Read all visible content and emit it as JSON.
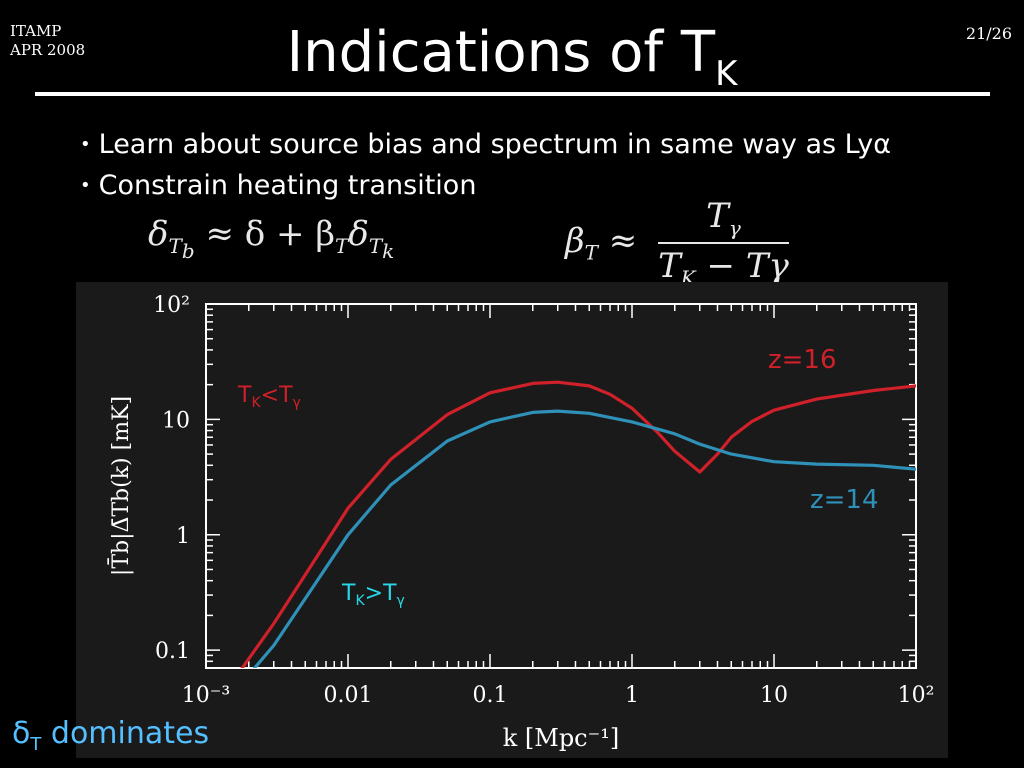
{
  "header": {
    "corner_line1": "ITAMP",
    "corner_line2": "APR 2008",
    "page": "21/26",
    "title_main": "Indications of T",
    "title_sub": "K"
  },
  "bullets": [
    "Learn about source bias and spectrum in same way as Lyα",
    "Constrain heating transition"
  ],
  "equations": {
    "eq1": "δ",
    "eq1_sub": "T",
    "eq1_subsub": "b",
    "eq1_rhs": " ≈ δ + β",
    "eq1_rhs_sub": "T",
    "eq1_rhs2": "δ",
    "eq1_rhs2_sub": "T",
    "eq1_rhs2_subsub": "k",
    "eq2_lhs": "β",
    "eq2_lhs_sub": "T",
    "eq2_approx": " ≈",
    "eq2_num": "T",
    "eq2_num_sub": "γ",
    "eq2_den": "T",
    "eq2_den_sub": "K",
    "eq2_den_rest": " − Tγ"
  },
  "footer": {
    "delta": "δ",
    "delta_sub": "T",
    "text": " dominates"
  },
  "colors": {
    "z16": "#d0202a",
    "z14": "#2f90b8",
    "label_tk_gt": "#28d8e8",
    "footer": "#55bfff"
  },
  "chart_data": {
    "type": "line",
    "x_scale": "log",
    "y_scale": "log",
    "xlim": [
      0.001,
      100
    ],
    "ylim": [
      0.07,
      100
    ],
    "xlabel": "k  [Mpc⁻¹]",
    "ylabel": "|T̄b|Δ̄Tb(k)  [mK]",
    "x_ticks": [
      "10⁻³",
      "0.01",
      "0.1",
      "1",
      "10",
      "10²"
    ],
    "x_tick_values": [
      0.001,
      0.01,
      0.1,
      1,
      10,
      100
    ],
    "y_ticks": [
      "0.1",
      "1",
      "10",
      "10²"
    ],
    "y_tick_values": [
      0.1,
      1,
      10,
      100
    ],
    "series": [
      {
        "name": "z=16",
        "color": "#d0202a",
        "x": [
          0.0018,
          0.003,
          0.005,
          0.01,
          0.02,
          0.05,
          0.1,
          0.2,
          0.3,
          0.5,
          0.7,
          1.0,
          1.5,
          2.0,
          3.0,
          4.0,
          5.0,
          7.0,
          10,
          20,
          50,
          100
        ],
        "y": [
          0.07,
          0.17,
          0.45,
          1.7,
          4.5,
          11.0,
          17.0,
          20.5,
          21.0,
          19.5,
          16.5,
          12.5,
          7.8,
          5.3,
          3.5,
          5.0,
          7.0,
          9.6,
          12.0,
          15.0,
          17.8,
          19.5
        ]
      },
      {
        "name": "z=14",
        "color": "#2f90b8",
        "x": [
          0.0022,
          0.003,
          0.005,
          0.01,
          0.02,
          0.05,
          0.1,
          0.2,
          0.3,
          0.5,
          1.0,
          2.0,
          3.0,
          5.0,
          10,
          20,
          50,
          100
        ],
        "y": [
          0.07,
          0.11,
          0.28,
          1.0,
          2.7,
          6.5,
          9.5,
          11.5,
          11.8,
          11.3,
          9.5,
          7.5,
          6.1,
          5.0,
          4.3,
          4.1,
          4.0,
          3.7
        ]
      }
    ],
    "annotations": [
      {
        "text": "z=16",
        "color": "#d0202a"
      },
      {
        "text": "z=14",
        "color": "#2f90b8"
      },
      {
        "text_main": "T",
        "text_sub1": "K",
        "text_mid": "<T",
        "text_sub2": "γ",
        "color": "#d0202a"
      },
      {
        "text_main": "T",
        "text_sub1": "K",
        "text_mid": ">T",
        "text_sub2": "γ",
        "color": "#28d8e8"
      }
    ]
  }
}
